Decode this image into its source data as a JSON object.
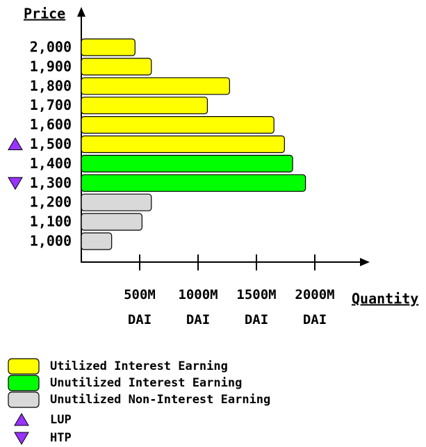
{
  "chart_data": {
    "type": "horizontal_bar",
    "ylabel": "Price",
    "xlabel": "Quantity",
    "categories": [
      "2,000",
      "1,900",
      "1,800",
      "1,700",
      "1,600",
      "1,500",
      "1,400",
      "1,300",
      "1,200",
      "1,100",
      "1,000"
    ],
    "series": [
      {
        "name": "Utilized Interest Earning",
        "color": "#ffff00",
        "values": [
          460,
          600,
          1270,
          1080,
          1650,
          1740,
          null,
          null,
          null,
          null,
          null
        ]
      },
      {
        "name": "Unutilized Interest Earning",
        "color": "#00ff00",
        "values": [
          null,
          null,
          null,
          null,
          null,
          null,
          1810,
          1920,
          null,
          null,
          null
        ]
      },
      {
        "name": "Unutilized Non-Interest Earning",
        "color": "#d9d9d9",
        "values": [
          null,
          null,
          null,
          null,
          null,
          null,
          null,
          null,
          600,
          520,
          260
        ]
      }
    ],
    "xlim": [
      0,
      2000
    ],
    "xticks": [
      {
        "value": 500,
        "label": "500M DAI"
      },
      {
        "value": 1000,
        "label": "1000M DAI"
      },
      {
        "value": 1500,
        "label": "1500M DAI"
      },
      {
        "value": 2000,
        "label": "2000M DAI"
      }
    ],
    "markers": [
      {
        "name": "LUP",
        "at": "1,500",
        "shape": "up",
        "color": "#9933ff"
      },
      {
        "name": "HTP",
        "at": "1,300",
        "shape": "down",
        "color": "#9933ff"
      }
    ]
  }
}
